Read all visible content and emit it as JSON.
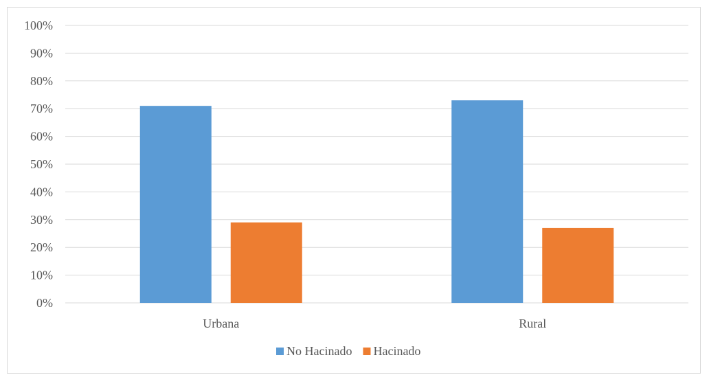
{
  "chart_data": {
    "type": "bar",
    "categories": [
      "Urbana",
      "Rural"
    ],
    "series": [
      {
        "name": "No Hacinado",
        "values": [
          71,
          73
        ],
        "color": "#5b9bd5"
      },
      {
        "name": "Hacinado",
        "values": [
          29,
          27
        ],
        "color": "#ed7d31"
      }
    ],
    "y_ticks": [
      "0%",
      "10%",
      "20%",
      "30%",
      "40%",
      "50%",
      "60%",
      "70%",
      "80%",
      "90%",
      "100%"
    ],
    "ylim": [
      0,
      100
    ],
    "y_unit": "%",
    "grid": true,
    "grid_color": "#d9d9d9",
    "legend_position": "bottom"
  }
}
